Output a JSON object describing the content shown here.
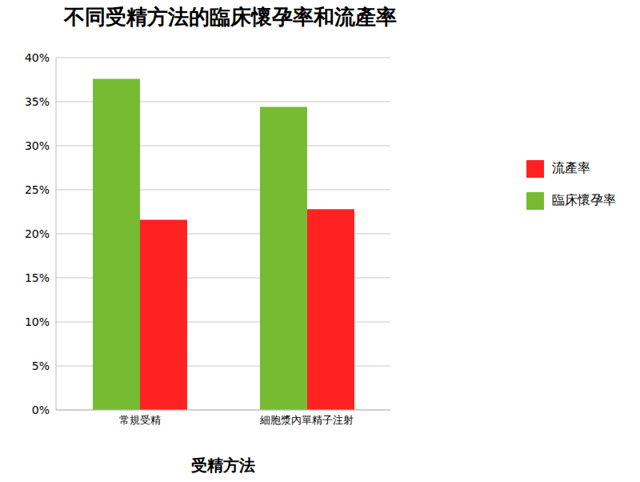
{
  "chart_data": {
    "type": "bar",
    "title": "不同受精方法的臨床懷孕率和流產率",
    "x_label": "受精方法",
    "categories": [
      "常規受精",
      "細胞漿內單精子注射"
    ],
    "series": [
      {
        "name": "臨床懷孕率",
        "color": "#77bb33",
        "values": [
          37.6,
          34.4
        ]
      },
      {
        "name": "流產率",
        "color": "#ff2222",
        "values": [
          21.6,
          22.8
        ]
      }
    ],
    "ylim": [
      0,
      40
    ],
    "yticks": [
      {
        "value": 0,
        "label": "0%"
      },
      {
        "value": 5,
        "label": "5%"
      },
      {
        "value": 10,
        "label": "10%"
      },
      {
        "value": 15,
        "label": "15%"
      },
      {
        "value": 20,
        "label": "20%"
      },
      {
        "value": 25,
        "label": "25%"
      },
      {
        "value": 30,
        "label": "30%"
      },
      {
        "value": 35,
        "label": "35%"
      },
      {
        "value": 40,
        "label": "40%"
      }
    ],
    "grid": true,
    "legend": "right"
  }
}
